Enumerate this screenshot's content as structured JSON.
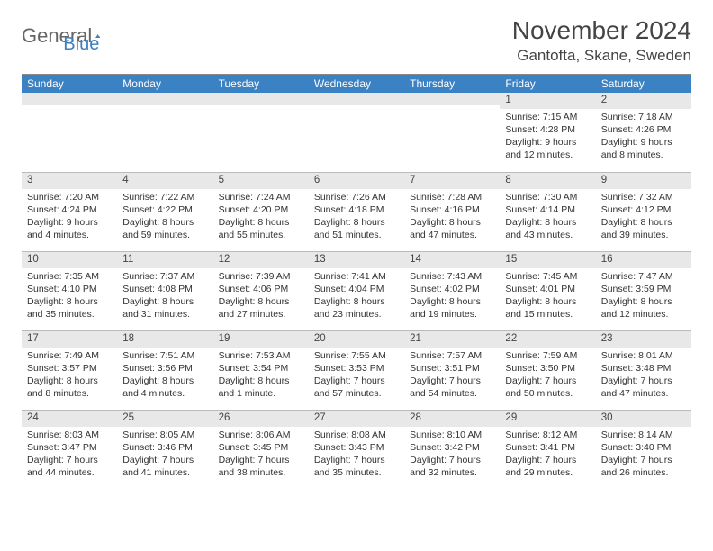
{
  "logo": {
    "part1": "General",
    "part2": "Blue"
  },
  "month_title": "November 2024",
  "location": "Gantofta, Skane, Sweden",
  "colors": {
    "header_band": "#3b82c4",
    "daynum_bg": "#e8e8e8",
    "logo_blue": "#3b7fc4",
    "text": "#333333",
    "divider": "#bbbbbb"
  },
  "weekdays": [
    "Sunday",
    "Monday",
    "Tuesday",
    "Wednesday",
    "Thursday",
    "Friday",
    "Saturday"
  ],
  "weeks": [
    [
      {
        "day": "",
        "sunrise": "",
        "sunset": "",
        "daylight": ""
      },
      {
        "day": "",
        "sunrise": "",
        "sunset": "",
        "daylight": ""
      },
      {
        "day": "",
        "sunrise": "",
        "sunset": "",
        "daylight": ""
      },
      {
        "day": "",
        "sunrise": "",
        "sunset": "",
        "daylight": ""
      },
      {
        "day": "",
        "sunrise": "",
        "sunset": "",
        "daylight": ""
      },
      {
        "day": "1",
        "sunrise": "Sunrise: 7:15 AM",
        "sunset": "Sunset: 4:28 PM",
        "daylight": "Daylight: 9 hours and 12 minutes."
      },
      {
        "day": "2",
        "sunrise": "Sunrise: 7:18 AM",
        "sunset": "Sunset: 4:26 PM",
        "daylight": "Daylight: 9 hours and 8 minutes."
      }
    ],
    [
      {
        "day": "3",
        "sunrise": "Sunrise: 7:20 AM",
        "sunset": "Sunset: 4:24 PM",
        "daylight": "Daylight: 9 hours and 4 minutes."
      },
      {
        "day": "4",
        "sunrise": "Sunrise: 7:22 AM",
        "sunset": "Sunset: 4:22 PM",
        "daylight": "Daylight: 8 hours and 59 minutes."
      },
      {
        "day": "5",
        "sunrise": "Sunrise: 7:24 AM",
        "sunset": "Sunset: 4:20 PM",
        "daylight": "Daylight: 8 hours and 55 minutes."
      },
      {
        "day": "6",
        "sunrise": "Sunrise: 7:26 AM",
        "sunset": "Sunset: 4:18 PM",
        "daylight": "Daylight: 8 hours and 51 minutes."
      },
      {
        "day": "7",
        "sunrise": "Sunrise: 7:28 AM",
        "sunset": "Sunset: 4:16 PM",
        "daylight": "Daylight: 8 hours and 47 minutes."
      },
      {
        "day": "8",
        "sunrise": "Sunrise: 7:30 AM",
        "sunset": "Sunset: 4:14 PM",
        "daylight": "Daylight: 8 hours and 43 minutes."
      },
      {
        "day": "9",
        "sunrise": "Sunrise: 7:32 AM",
        "sunset": "Sunset: 4:12 PM",
        "daylight": "Daylight: 8 hours and 39 minutes."
      }
    ],
    [
      {
        "day": "10",
        "sunrise": "Sunrise: 7:35 AM",
        "sunset": "Sunset: 4:10 PM",
        "daylight": "Daylight: 8 hours and 35 minutes."
      },
      {
        "day": "11",
        "sunrise": "Sunrise: 7:37 AM",
        "sunset": "Sunset: 4:08 PM",
        "daylight": "Daylight: 8 hours and 31 minutes."
      },
      {
        "day": "12",
        "sunrise": "Sunrise: 7:39 AM",
        "sunset": "Sunset: 4:06 PM",
        "daylight": "Daylight: 8 hours and 27 minutes."
      },
      {
        "day": "13",
        "sunrise": "Sunrise: 7:41 AM",
        "sunset": "Sunset: 4:04 PM",
        "daylight": "Daylight: 8 hours and 23 minutes."
      },
      {
        "day": "14",
        "sunrise": "Sunrise: 7:43 AM",
        "sunset": "Sunset: 4:02 PM",
        "daylight": "Daylight: 8 hours and 19 minutes."
      },
      {
        "day": "15",
        "sunrise": "Sunrise: 7:45 AM",
        "sunset": "Sunset: 4:01 PM",
        "daylight": "Daylight: 8 hours and 15 minutes."
      },
      {
        "day": "16",
        "sunrise": "Sunrise: 7:47 AM",
        "sunset": "Sunset: 3:59 PM",
        "daylight": "Daylight: 8 hours and 12 minutes."
      }
    ],
    [
      {
        "day": "17",
        "sunrise": "Sunrise: 7:49 AM",
        "sunset": "Sunset: 3:57 PM",
        "daylight": "Daylight: 8 hours and 8 minutes."
      },
      {
        "day": "18",
        "sunrise": "Sunrise: 7:51 AM",
        "sunset": "Sunset: 3:56 PM",
        "daylight": "Daylight: 8 hours and 4 minutes."
      },
      {
        "day": "19",
        "sunrise": "Sunrise: 7:53 AM",
        "sunset": "Sunset: 3:54 PM",
        "daylight": "Daylight: 8 hours and 1 minute."
      },
      {
        "day": "20",
        "sunrise": "Sunrise: 7:55 AM",
        "sunset": "Sunset: 3:53 PM",
        "daylight": "Daylight: 7 hours and 57 minutes."
      },
      {
        "day": "21",
        "sunrise": "Sunrise: 7:57 AM",
        "sunset": "Sunset: 3:51 PM",
        "daylight": "Daylight: 7 hours and 54 minutes."
      },
      {
        "day": "22",
        "sunrise": "Sunrise: 7:59 AM",
        "sunset": "Sunset: 3:50 PM",
        "daylight": "Daylight: 7 hours and 50 minutes."
      },
      {
        "day": "23",
        "sunrise": "Sunrise: 8:01 AM",
        "sunset": "Sunset: 3:48 PM",
        "daylight": "Daylight: 7 hours and 47 minutes."
      }
    ],
    [
      {
        "day": "24",
        "sunrise": "Sunrise: 8:03 AM",
        "sunset": "Sunset: 3:47 PM",
        "daylight": "Daylight: 7 hours and 44 minutes."
      },
      {
        "day": "25",
        "sunrise": "Sunrise: 8:05 AM",
        "sunset": "Sunset: 3:46 PM",
        "daylight": "Daylight: 7 hours and 41 minutes."
      },
      {
        "day": "26",
        "sunrise": "Sunrise: 8:06 AM",
        "sunset": "Sunset: 3:45 PM",
        "daylight": "Daylight: 7 hours and 38 minutes."
      },
      {
        "day": "27",
        "sunrise": "Sunrise: 8:08 AM",
        "sunset": "Sunset: 3:43 PM",
        "daylight": "Daylight: 7 hours and 35 minutes."
      },
      {
        "day": "28",
        "sunrise": "Sunrise: 8:10 AM",
        "sunset": "Sunset: 3:42 PM",
        "daylight": "Daylight: 7 hours and 32 minutes."
      },
      {
        "day": "29",
        "sunrise": "Sunrise: 8:12 AM",
        "sunset": "Sunset: 3:41 PM",
        "daylight": "Daylight: 7 hours and 29 minutes."
      },
      {
        "day": "30",
        "sunrise": "Sunrise: 8:14 AM",
        "sunset": "Sunset: 3:40 PM",
        "daylight": "Daylight: 7 hours and 26 minutes."
      }
    ]
  ]
}
